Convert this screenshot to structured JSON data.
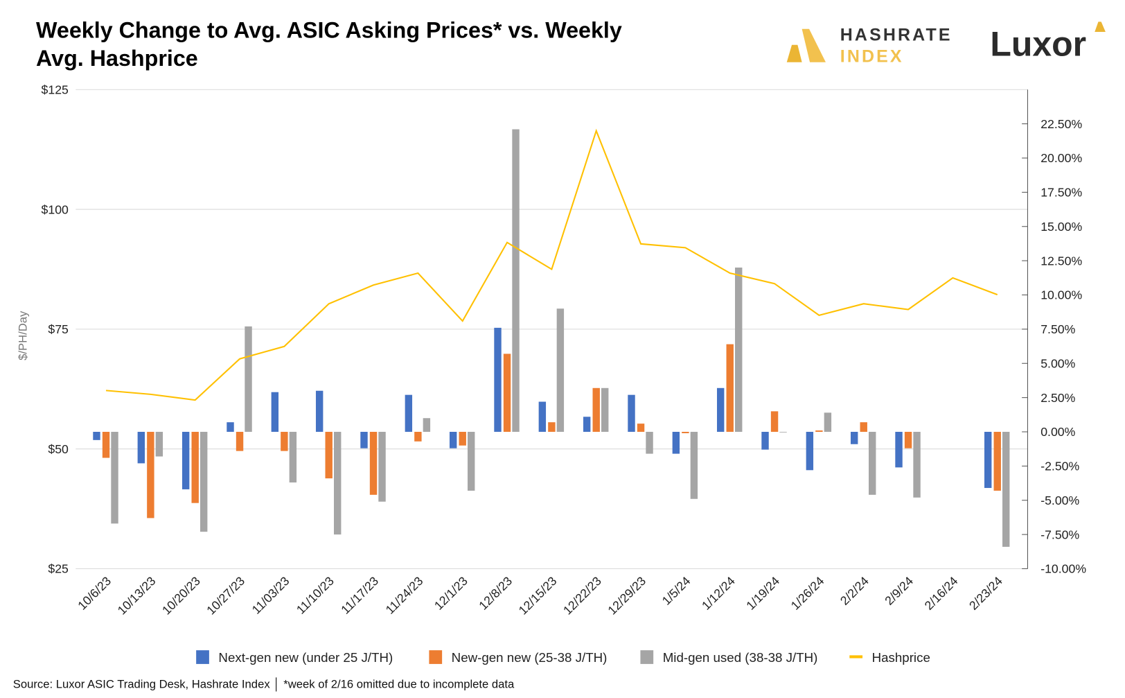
{
  "header": {
    "title_line1": "Weekly Change to Avg. ASIC Asking Prices* vs. Weekly",
    "title_line2": "Avg. Hashprice",
    "logo_hashrate_line1": "HASHRATE",
    "logo_hashrate_line2": "INDEX",
    "logo_luxor": "Luxor"
  },
  "footer": {
    "source": "Source: Luxor ASIC Trading Desk, Hashrate Index │ *week of 2/16 omitted due to incomplete data"
  },
  "chart_data": {
    "type": "bar",
    "title": "Weekly Change to Avg. ASIC Asking Prices* vs. Weekly Avg. Hashprice",
    "ylabel": "$/PH/Day",
    "ylim": [
      25,
      125
    ],
    "y_ticks": [
      "$125",
      "$100",
      "$75",
      "$50",
      "$25"
    ],
    "y2lim": [
      -10,
      25
    ],
    "y2_ticks": [
      "22.50%",
      "20.00%",
      "17.50%",
      "15.00%",
      "12.50%",
      "10.00%",
      "7.50%",
      "5.00%",
      "2.50%",
      "0.00%",
      "-2.50%",
      "-5.00%",
      "-7.50%",
      "-10.00%"
    ],
    "grid": true,
    "legend_position": "bottom",
    "categories": [
      "10/6/23",
      "10/13/23",
      "10/20/23",
      "10/27/23",
      "11/03/23",
      "11/10/23",
      "11/17/23",
      "11/24/23",
      "12/1/23",
      "12/8/23",
      "12/15/23",
      "12/22/23",
      "12/29/23",
      "1/5/24",
      "1/12/24",
      "1/19/24",
      "1/26/24",
      "2/2/24",
      "2/9/24",
      "2/16/24",
      "2/23/24"
    ],
    "series": [
      {
        "name": "Next-gen new (under 25 J/TH)",
        "type": "bar",
        "axis": "right",
        "unit": "%",
        "color": "#4472C4",
        "values": [
          -0.6,
          -2.3,
          -4.2,
          0.7,
          2.9,
          3.0,
          -1.2,
          2.7,
          -1.2,
          7.6,
          2.2,
          1.1,
          2.7,
          -1.6,
          3.2,
          -1.3,
          -2.8,
          -0.9,
          -2.6,
          null,
          -4.1
        ]
      },
      {
        "name": "New-gen new (25-38 J/TH)",
        "type": "bar",
        "axis": "right",
        "unit": "%",
        "color": "#ED7D31",
        "values": [
          -1.9,
          -6.3,
          -5.2,
          -1.4,
          -1.4,
          -3.4,
          -4.6,
          -0.7,
          -1.0,
          5.7,
          0.7,
          3.2,
          0.6,
          -0.1,
          6.4,
          1.5,
          0.1,
          0.7,
          -1.2,
          null,
          -4.3
        ]
      },
      {
        "name": "Mid-gen used (38-38 J/TH)",
        "type": "bar",
        "axis": "right",
        "unit": "%",
        "color": "#A5A5A5",
        "values": [
          -6.7,
          -1.8,
          -7.3,
          7.7,
          -3.7,
          -7.5,
          -5.1,
          1.0,
          -4.3,
          22.1,
          9.0,
          3.2,
          -1.6,
          -4.9,
          12.0,
          0,
          1.4,
          -4.6,
          -4.8,
          null,
          -8.4
        ]
      },
      {
        "name": "Hashprice",
        "type": "line",
        "axis": "left",
        "unit": "$/PH/Day",
        "color": "#FFC000",
        "values": [
          62.2,
          61.4,
          60.2,
          68.8,
          71.4,
          80.3,
          84.2,
          86.7,
          76.7,
          93.1,
          87.5,
          116.4,
          92.8,
          92.0,
          86.7,
          84.5,
          77.9,
          80.3,
          79.1,
          85.7,
          82.2
        ]
      }
    ]
  }
}
